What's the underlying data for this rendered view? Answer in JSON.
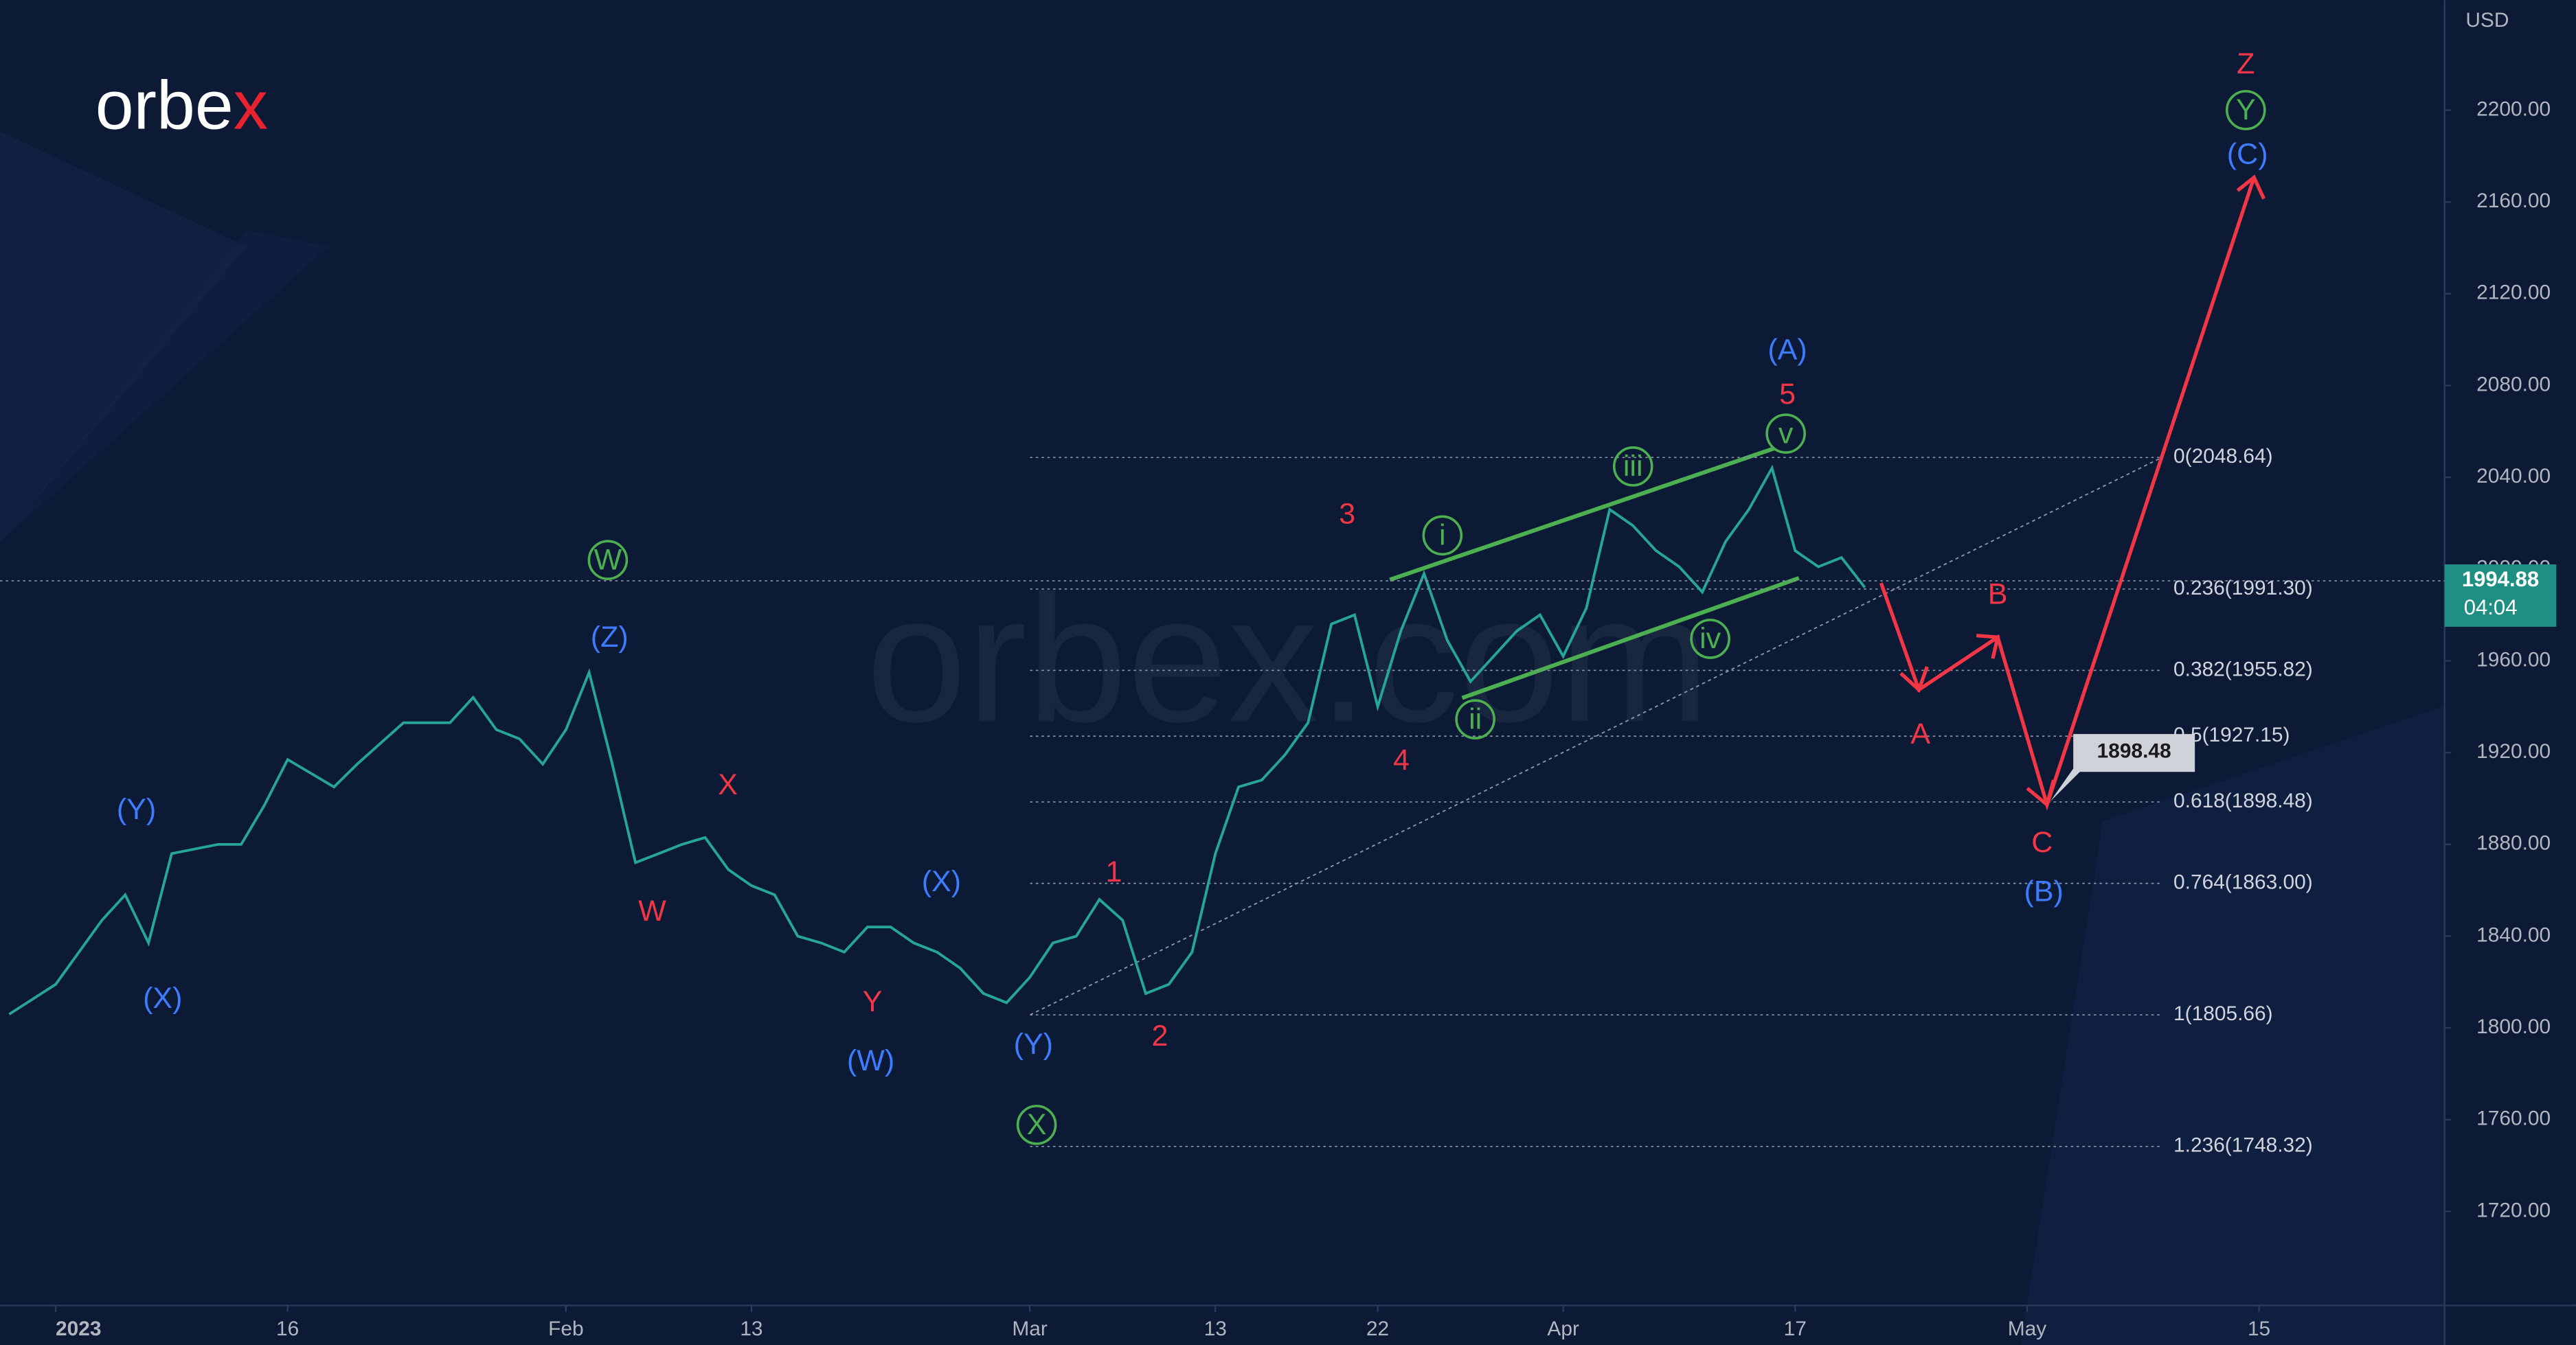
{
  "logo": {
    "text": "orbe",
    "accent": "x"
  },
  "watermark": "orbex.com",
  "chart_data": {
    "type": "line",
    "currency": "USD",
    "color": "#26a69a",
    "x": [
      -2,
      0,
      2,
      3,
      4,
      5,
      7,
      8,
      9,
      10,
      12,
      13,
      15,
      17,
      18,
      19,
      20,
      21,
      22,
      23,
      24,
      25,
      26,
      27,
      28,
      29,
      30,
      31,
      32,
      33,
      34,
      35,
      36,
      37,
      38,
      39,
      40,
      41,
      42,
      43,
      44,
      45,
      46,
      47,
      48,
      49,
      50,
      51,
      52,
      53,
      54,
      55,
      56,
      57,
      58,
      59,
      60,
      61,
      62,
      63,
      64,
      65,
      66,
      67,
      68,
      69,
      70,
      71,
      72,
      73,
      74,
      75,
      76,
      77,
      78
    ],
    "values": [
      1806,
      1819,
      1847,
      1858,
      1837,
      1876,
      1880,
      1880,
      1897,
      1917,
      1905,
      1915,
      1933,
      1933,
      1944,
      1930,
      1926,
      1915,
      1930,
      1955,
      1915,
      1872,
      1876,
      1880,
      1883,
      1869,
      1862,
      1858,
      1840,
      1837,
      1833,
      1844,
      1844,
      1837,
      1833,
      1826,
      1815,
      1811,
      1822,
      1837,
      1840,
      1856,
      1847,
      1815,
      1819,
      1833,
      1876,
      1905,
      1908,
      1919,
      1933,
      1976,
      1980,
      1940,
      1973,
      1998,
      1969,
      1951,
      1962,
      1973,
      1980,
      1962,
      1983,
      2026,
      2019,
      2008,
      2001,
      1990,
      2012,
      2026,
      2044,
      2008,
      2001,
      2005,
      1992
    ],
    "xlim": [
      -2.4,
      103
    ],
    "xticks": [
      {
        "value": 0,
        "label": "2023"
      },
      {
        "value": 10,
        "label": "16"
      },
      {
        "value": 22,
        "label": "Feb"
      },
      {
        "value": 30,
        "label": "13"
      },
      {
        "value": 42,
        "label": "Mar"
      },
      {
        "value": 50,
        "label": "13"
      },
      {
        "value": 57,
        "label": "22"
      },
      {
        "value": 65,
        "label": "Apr"
      },
      {
        "value": 75,
        "label": "17"
      },
      {
        "value": 85,
        "label": "May"
      },
      {
        "value": 95,
        "label": "15"
      }
    ],
    "ylim": [
      1679,
      2248
    ],
    "yticks": [
      {
        "value": 1720,
        "label": "1720.00"
      },
      {
        "value": 1760,
        "label": "1760.00"
      },
      {
        "value": 1800,
        "label": "1800.00"
      },
      {
        "value": 1840,
        "label": "1840.00"
      },
      {
        "value": 1880,
        "label": "1880.00"
      },
      {
        "value": 1920,
        "label": "1920.00"
      },
      {
        "value": 1960,
        "label": "1960.00"
      },
      {
        "value": 2000,
        "label": "2000.00"
      },
      {
        "value": 2040,
        "label": "2040.00"
      },
      {
        "value": 2080,
        "label": "2080.00"
      },
      {
        "value": 2120,
        "label": "2120.00"
      },
      {
        "value": 2160,
        "label": "2160.00"
      },
      {
        "value": 2200,
        "label": "2200.00"
      }
    ],
    "last_price": {
      "value": 1994.88,
      "label": "1994.88",
      "countdown": "04:04"
    },
    "target_label": "1898.48",
    "fib_levels": [
      {
        "value": 2048.64,
        "label": "0(2048.64)"
      },
      {
        "value": 1991.3,
        "label": "0.236(1991.30)"
      },
      {
        "value": 1955.82,
        "label": "0.382(1955.82)"
      },
      {
        "value": 1927.15,
        "label": "0.5(1927.15)"
      },
      {
        "value": 1898.48,
        "label": "0.618(1898.48)"
      },
      {
        "value": 1863.0,
        "label": "0.764(1863.00)"
      },
      {
        "value": 1805.66,
        "label": "1(1805.66)"
      },
      {
        "value": 1748.32,
        "label": "1.236(1748.32)"
      }
    ],
    "wave_labels": [
      {
        "text": "(Y)",
        "color": "#3d7bff"
      },
      {
        "text": "(X)",
        "color": "#3d7bff"
      },
      {
        "text": "W",
        "color": "#4caf50",
        "circled": true
      },
      {
        "text": "(Z)",
        "color": "#3d7bff"
      },
      {
        "text": "X",
        "color": "#f23645"
      },
      {
        "text": "W",
        "color": "#f23645"
      },
      {
        "text": "(X)",
        "color": "#3d7bff"
      },
      {
        "text": "Y",
        "color": "#f23645"
      },
      {
        "text": "(W)",
        "color": "#3d7bff"
      },
      {
        "text": "(Y)",
        "color": "#3d7bff"
      },
      {
        "text": "X",
        "color": "#4caf50",
        "circled": true
      },
      {
        "text": "1",
        "color": "#f23645"
      },
      {
        "text": "2",
        "color": "#f23645"
      },
      {
        "text": "3",
        "color": "#f23645"
      },
      {
        "text": "4",
        "color": "#f23645"
      },
      {
        "text": "i",
        "color": "#4caf50",
        "circled": true
      },
      {
        "text": "ii",
        "color": "#4caf50",
        "circled": true
      },
      {
        "text": "iii",
        "color": "#4caf50",
        "circled": true
      },
      {
        "text": "iv",
        "color": "#4caf50",
        "circled": true
      },
      {
        "text": "v",
        "color": "#4caf50",
        "circled": true
      },
      {
        "text": "5",
        "color": "#f23645"
      },
      {
        "text": "(A)",
        "color": "#3d7bff"
      },
      {
        "text": "A",
        "color": "#f23645"
      },
      {
        "text": "B",
        "color": "#f23645"
      },
      {
        "text": "C",
        "color": "#f23645"
      },
      {
        "text": "(B)",
        "color": "#3d7bff"
      },
      {
        "text": "Z",
        "color": "#f23645"
      },
      {
        "text": "Y",
        "color": "#4caf50",
        "circled": true
      },
      {
        "text": "(C)",
        "color": "#3d7bff"
      }
    ]
  }
}
